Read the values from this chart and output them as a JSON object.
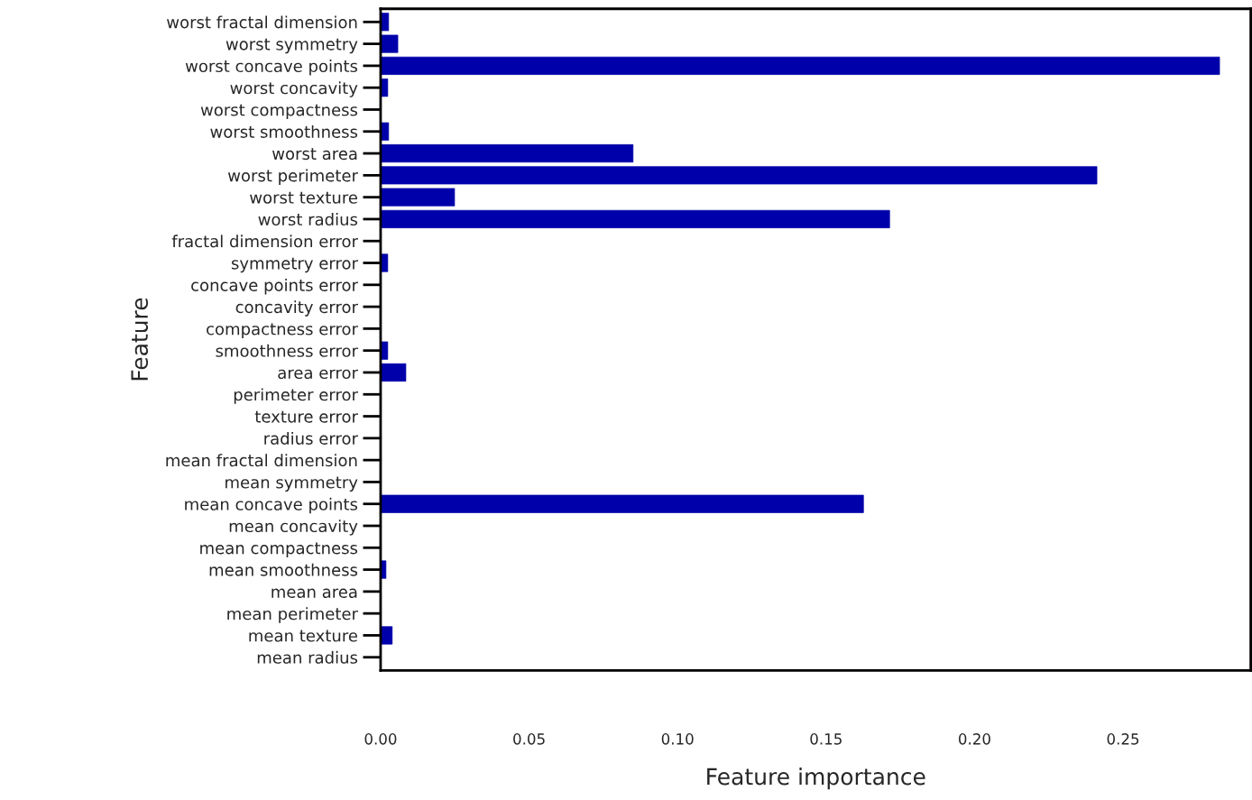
{
  "chart_data": {
    "type": "bar",
    "orientation": "horizontal",
    "xlabel": "Feature importance",
    "ylabel": "Feature",
    "categories": [
      "worst fractal dimension",
      "worst symmetry",
      "worst concave points",
      "worst concavity",
      "worst compactness",
      "worst smoothness",
      "worst area",
      "worst perimeter",
      "worst texture",
      "worst radius",
      "fractal dimension error",
      "symmetry error",
      "concave points error",
      "concavity error",
      "compactness error",
      "smoothness error",
      "area error",
      "perimeter error",
      "texture error",
      "radius error",
      "mean fractal dimension",
      "mean symmetry",
      "mean concave points",
      "mean concavity",
      "mean compactness",
      "mean smoothness",
      "mean area",
      "mean perimeter",
      "mean texture",
      "mean radius"
    ],
    "values": [
      0.0027,
      0.0058,
      0.2825,
      0.0024,
      0,
      0.0027,
      0.085,
      0.2412,
      0.0249,
      0.1714,
      0,
      0.0024,
      0,
      0,
      0,
      0.0024,
      0.0085,
      0,
      0,
      0,
      0,
      0,
      0.1626,
      0,
      0,
      0.0018,
      0,
      0,
      0.0039,
      0
    ],
    "color": "#0000aa",
    "xlim": [
      0,
      0.293
    ],
    "xticks": [
      {
        "value": 0,
        "label": "0.00"
      },
      0.05,
      {
        "value": 0.1,
        "label": "0.10"
      },
      0.15,
      {
        "value": 0.2,
        "label": "0.20"
      },
      0.25
    ],
    "grid": false
  }
}
